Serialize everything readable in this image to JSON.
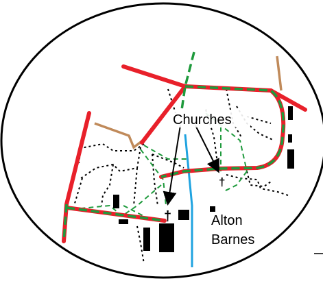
{
  "map": {
    "labels": {
      "churches": "Churches",
      "village_line1": "Alton",
      "village_line2": "Barnes"
    },
    "symbols": {
      "church": "†"
    },
    "legend_colors": {
      "main_road": "#e8202a",
      "footpath_green_dashed": "#1e9a3c",
      "track_brown": "#c08a5a",
      "stream": "#1fa3e0",
      "minor_path_dotted": "#000000",
      "building": "#000000",
      "frame": "#000000"
    },
    "icons": [
      "church-cross-icon",
      "pointer-arrow-icon"
    ]
  }
}
